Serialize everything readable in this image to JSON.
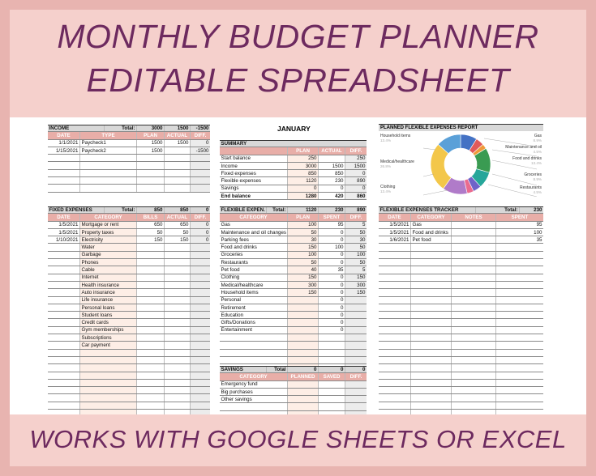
{
  "titles": {
    "line1": "MONTHLY BUDGET PLANNER",
    "line2": "EDITABLE SPREADSHEET",
    "bottom": "WORKS WITH GOOGLE SHEETS OR EXCEL"
  },
  "month": "JANUARY",
  "income": {
    "title": "INCOME",
    "total_label": "Total:",
    "plan": "3000",
    "actual": "1500",
    "diff": "-1500",
    "headers": [
      "DATE",
      "TYPE",
      "PLAN",
      "ACTUAL",
      "DIFF."
    ],
    "rows": [
      [
        "1/1/2021",
        "Paycheck1",
        "1500",
        "1500",
        "0"
      ],
      [
        "1/15/2021",
        "Paycheck2",
        "1500",
        "",
        "-1500"
      ],
      [
        "",
        "",
        "",
        "",
        ""
      ],
      [
        "",
        "",
        "",
        "",
        ""
      ],
      [
        "",
        "",
        "",
        "",
        ""
      ],
      [
        "",
        "",
        "",
        "",
        ""
      ],
      [
        "",
        "",
        "",
        "",
        ""
      ]
    ]
  },
  "summary": {
    "title": "SUMMARY",
    "headers": [
      "",
      "PLAN",
      "ACTUAL",
      "DIFF."
    ],
    "rows": [
      [
        "Start balance",
        "250",
        "",
        "250"
      ],
      [
        "Income",
        "3000",
        "1500",
        "1500"
      ],
      [
        "Fixed expenses",
        "850",
        "850",
        "0"
      ],
      [
        "Flexible expenses",
        "1120",
        "230",
        "890"
      ],
      [
        "Savings",
        "0",
        "0",
        "0"
      ],
      [
        "End balance",
        "1280",
        "420",
        "860"
      ]
    ]
  },
  "pie": {
    "title": "PLANNED FLEXIBLE EXPENSES REPORT",
    "labels": [
      {
        "name": "Household items",
        "pct": "13.4%"
      },
      {
        "name": "Medical/healthcare",
        "pct": "26.8%"
      },
      {
        "name": "Clothing",
        "pct": "13.4%"
      },
      {
        "name": "Gas",
        "pct": "8.9%"
      },
      {
        "name": "Maintenance and oil",
        "pct": "4.5%"
      },
      {
        "name": "Food and drinks",
        "pct": "13.4%"
      },
      {
        "name": "Groceries",
        "pct": "8.9%"
      },
      {
        "name": "Restaurants",
        "pct": "4.5%"
      }
    ],
    "slices": [
      {
        "v": 100,
        "c": "#4472c4"
      },
      {
        "v": 50,
        "c": "#e05a5a"
      },
      {
        "v": 30,
        "c": "#ef9a3a"
      },
      {
        "v": 150,
        "c": "#3a9b52"
      },
      {
        "v": 100,
        "c": "#26a69a"
      },
      {
        "v": 50,
        "c": "#6f63c9"
      },
      {
        "v": 40,
        "c": "#ea6b8f"
      },
      {
        "v": 150,
        "c": "#b07bc9"
      },
      {
        "v": 300,
        "c": "#f3c74a"
      },
      {
        "v": 150,
        "c": "#5aa0d8"
      }
    ]
  },
  "fixed": {
    "title": "FIXED EXPENSES",
    "total_label": "Total:",
    "bills": "850",
    "actual": "850",
    "diff": "0",
    "headers": [
      "DATE",
      "CATEGORY",
      "BILLS",
      "ACTUAL",
      "DIFF."
    ],
    "rows": [
      [
        "1/5/2021",
        "Mortgage or rent",
        "650",
        "650",
        "0"
      ],
      [
        "1/5/2021",
        "Property taxes",
        "50",
        "50",
        "0"
      ],
      [
        "1/10/2021",
        "Electricity",
        "150",
        "150",
        "0"
      ],
      [
        "",
        "Water",
        "",
        "",
        ""
      ],
      [
        "",
        "Garbage",
        "",
        "",
        ""
      ],
      [
        "",
        "Phones",
        "",
        "",
        ""
      ],
      [
        "",
        "Cable",
        "",
        "",
        ""
      ],
      [
        "",
        "Internet",
        "",
        "",
        ""
      ],
      [
        "",
        "Health insurance",
        "",
        "",
        ""
      ],
      [
        "",
        "Auto insurance",
        "",
        "",
        ""
      ],
      [
        "",
        "Life insurance",
        "",
        "",
        ""
      ],
      [
        "",
        "Personal loans",
        "",
        "",
        ""
      ],
      [
        "",
        "Student loans",
        "",
        "",
        ""
      ],
      [
        "",
        "Credit cards",
        "",
        "",
        ""
      ],
      [
        "",
        "Gym memberships",
        "",
        "",
        ""
      ],
      [
        "",
        "Subscriptions",
        "",
        "",
        ""
      ],
      [
        "",
        "Car payment",
        "",
        "",
        ""
      ],
      [
        "",
        "",
        "",
        "",
        ""
      ],
      [
        "",
        "",
        "",
        "",
        ""
      ],
      [
        "",
        "",
        "",
        "",
        ""
      ],
      [
        "",
        "",
        "",
        "",
        ""
      ],
      [
        "",
        "",
        "",
        "",
        ""
      ],
      [
        "",
        "",
        "",
        "",
        ""
      ],
      [
        "",
        "",
        "",
        "",
        ""
      ],
      [
        "",
        "",
        "",
        "",
        ""
      ],
      [
        "",
        "",
        "",
        "",
        ""
      ]
    ]
  },
  "flexible": {
    "title": "FLEXIBLE EXPEN.",
    "total_label": "Total:",
    "plan": "1120",
    "spent": "230",
    "diff": "890",
    "headers": [
      "CATEGORY",
      "PLAN",
      "SPENT",
      "DIFF."
    ],
    "rows": [
      [
        "Gas",
        "100",
        "95",
        "5"
      ],
      [
        "Maintenance and oil changes",
        "50",
        "0",
        "50"
      ],
      [
        "Parking fees",
        "30",
        "0",
        "30"
      ],
      [
        "Food and drinks",
        "150",
        "100",
        "50"
      ],
      [
        "Groceries",
        "100",
        "0",
        "100"
      ],
      [
        "Restaurants",
        "50",
        "0",
        "50"
      ],
      [
        "Pet food",
        "40",
        "35",
        "5"
      ],
      [
        "Clothing",
        "150",
        "0",
        "150"
      ],
      [
        "Medical/healthcare",
        "300",
        "0",
        "300"
      ],
      [
        "Household items",
        "150",
        "0",
        "150"
      ],
      [
        "Personal",
        "",
        "0",
        ""
      ],
      [
        "Retirement",
        "",
        "0",
        ""
      ],
      [
        "Education",
        "",
        "0",
        ""
      ],
      [
        "Gifts/Donations",
        "",
        "0",
        ""
      ],
      [
        "Entertainment",
        "",
        "0",
        ""
      ],
      [
        "",
        "",
        "",
        ""
      ],
      [
        "",
        "",
        "",
        ""
      ],
      [
        "",
        "",
        "",
        ""
      ],
      [
        "",
        "",
        "",
        ""
      ],
      [
        "",
        "",
        "",
        ""
      ]
    ]
  },
  "savings": {
    "title": "SAVINGS",
    "total_label": "Total",
    "plan": "0",
    "saved": "0",
    "diff": "0",
    "headers": [
      "CATEGORY",
      "PLANNED",
      "SAVED",
      "DIFF."
    ],
    "rows": [
      [
        "Emergency fund",
        "",
        "",
        ""
      ],
      [
        "Big purchases",
        "",
        "",
        ""
      ],
      [
        "Other savings",
        "",
        "",
        ""
      ],
      [
        "",
        "",
        "",
        ""
      ],
      [
        "",
        "",
        "",
        ""
      ]
    ]
  },
  "tracker": {
    "title": "FLEXIBLE EXPENSES TRACKER",
    "total_label": "Total:",
    "total": "230",
    "headers": [
      "DATE",
      "CATEGORY",
      "NOTES",
      "SPENT"
    ],
    "rows": [
      [
        "1/5/2021",
        "Gas",
        "",
        "95"
      ],
      [
        "1/5/2021",
        "Food and drinks",
        "",
        "100"
      ],
      [
        "1/6/2021",
        "Pet food",
        "",
        "35"
      ],
      [
        "",
        "",
        "",
        ""
      ],
      [
        "",
        "",
        "",
        ""
      ],
      [
        "",
        "",
        "",
        ""
      ],
      [
        "",
        "",
        "",
        ""
      ],
      [
        "",
        "",
        "",
        ""
      ],
      [
        "",
        "",
        "",
        ""
      ],
      [
        "",
        "",
        "",
        ""
      ],
      [
        "",
        "",
        "",
        ""
      ],
      [
        "",
        "",
        "",
        ""
      ],
      [
        "",
        "",
        "",
        ""
      ],
      [
        "",
        "",
        "",
        ""
      ],
      [
        "",
        "",
        "",
        ""
      ],
      [
        "",
        "",
        "",
        ""
      ],
      [
        "",
        "",
        "",
        ""
      ],
      [
        "",
        "",
        "",
        ""
      ],
      [
        "",
        "",
        "",
        ""
      ],
      [
        "",
        "",
        "",
        ""
      ],
      [
        "",
        "",
        "",
        ""
      ],
      [
        "",
        "",
        "",
        ""
      ],
      [
        "",
        "",
        "",
        ""
      ],
      [
        "",
        "",
        "",
        ""
      ],
      [
        "",
        "",
        "",
        ""
      ],
      [
        "",
        "",
        "",
        ""
      ]
    ]
  }
}
